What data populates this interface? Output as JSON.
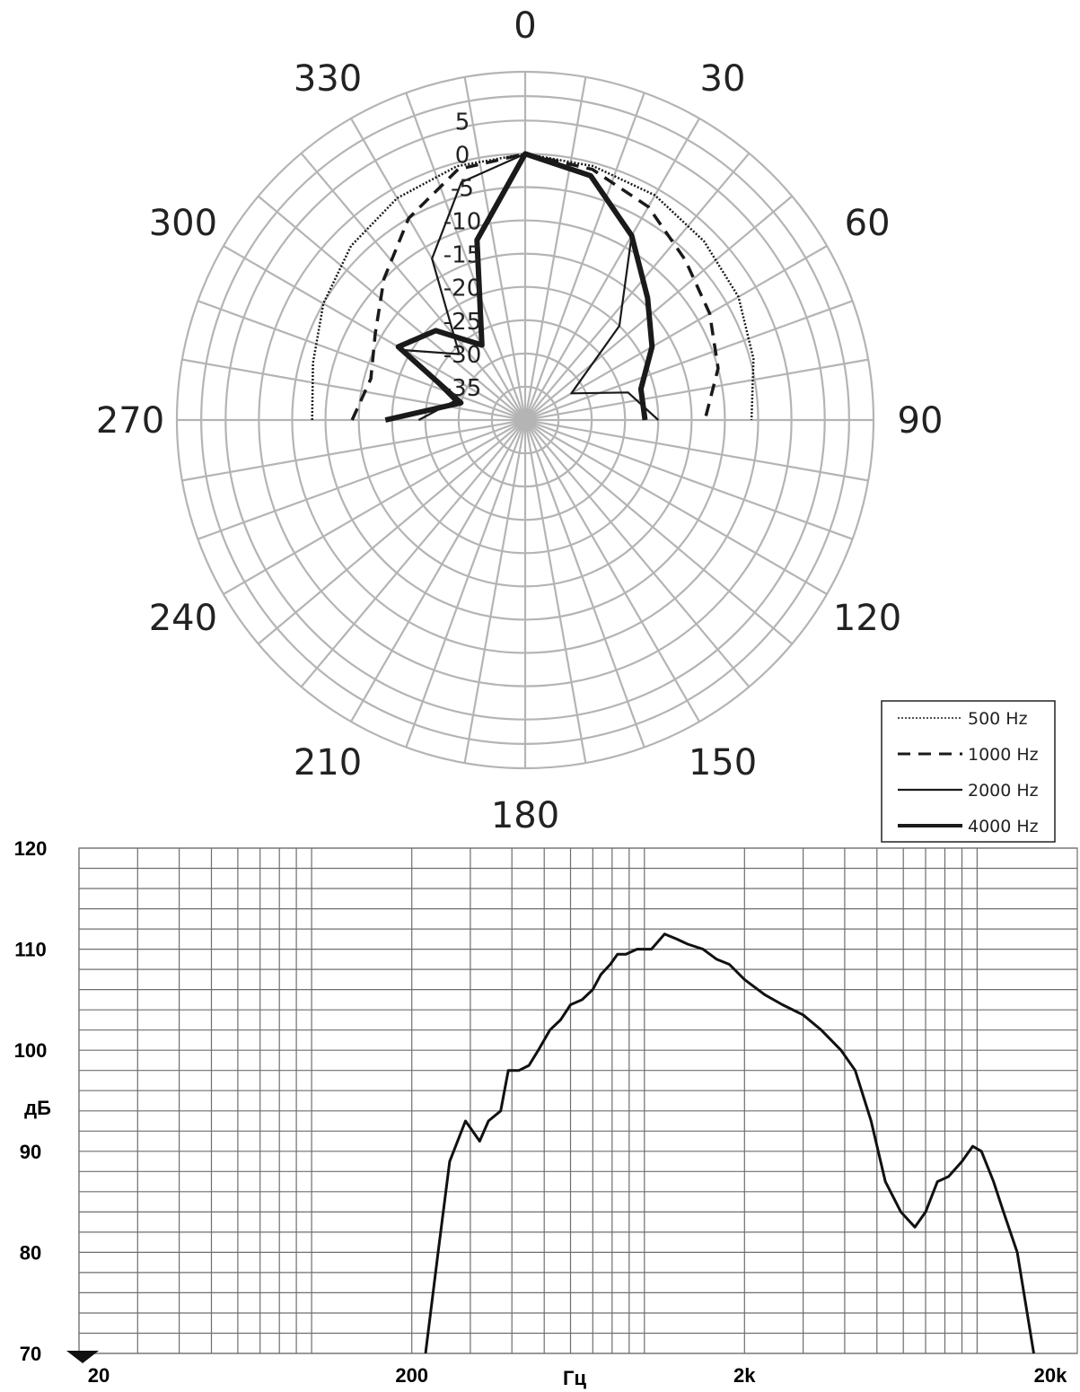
{
  "chart_data": [
    {
      "type": "polar",
      "angle_ticks": [
        "0",
        "30",
        "60",
        "90",
        "120",
        "150",
        "180",
        "210",
        "240",
        "270",
        "300",
        "330"
      ],
      "radial_ticks": [
        "5",
        "0",
        "-5",
        "-10",
        "-15",
        "-20",
        "-25",
        "-30",
        "-35"
      ],
      "rlim": [
        -40,
        5
      ],
      "legend_position": "bottom-right",
      "series": [
        {
          "name": "500Hz",
          "style": "dotted",
          "points": [
            {
              "angle": 0,
              "db": 0
            },
            {
              "angle": 15,
              "db": -0.5
            },
            {
              "angle": 30,
              "db": -1
            },
            {
              "angle": 45,
              "db": -2
            },
            {
              "angle": 60,
              "db": -3
            },
            {
              "angle": 75,
              "db": -4.5
            },
            {
              "angle": 90,
              "db": -6
            },
            {
              "angle": 270,
              "db": -8
            },
            {
              "angle": 285,
              "db": -7
            },
            {
              "angle": 300,
              "db": -5
            },
            {
              "angle": 315,
              "db": -3
            },
            {
              "angle": 330,
              "db": -1.5
            },
            {
              "angle": 345,
              "db": -0.5
            },
            {
              "angle": 360,
              "db": 0
            }
          ]
        },
        {
          "name": "1000Hz",
          "style": "dashed",
          "points": [
            {
              "angle": 0,
              "db": 0
            },
            {
              "angle": 15,
              "db": -1
            },
            {
              "angle": 30,
              "db": -3
            },
            {
              "angle": 45,
              "db": -6
            },
            {
              "angle": 60,
              "db": -8
            },
            {
              "angle": 75,
              "db": -10
            },
            {
              "angle": 90,
              "db": -13
            },
            {
              "angle": 270,
              "db": -14
            },
            {
              "angle": 285,
              "db": -16
            },
            {
              "angle": 300,
              "db": -14
            },
            {
              "angle": 315,
              "db": -10
            },
            {
              "angle": 330,
              "db": -5
            },
            {
              "angle": 345,
              "db": -1
            },
            {
              "angle": 360,
              "db": 0
            }
          ]
        },
        {
          "name": "2000Hz",
          "style": "thin",
          "points": [
            {
              "angle": 0,
              "db": 0
            },
            {
              "angle": 15,
              "db": -2
            },
            {
              "angle": 30,
              "db": -8
            },
            {
              "angle": 45,
              "db": -20
            },
            {
              "angle": 60,
              "db": -32
            },
            {
              "angle": 75,
              "db": -24
            },
            {
              "angle": 90,
              "db": -20
            },
            {
              "angle": 270,
              "db": -24
            },
            {
              "angle": 285,
              "db": -29
            },
            {
              "angle": 300,
              "db": -19
            },
            {
              "angle": 315,
              "db": -26
            },
            {
              "angle": 330,
              "db": -12
            },
            {
              "angle": 345,
              "db": -3
            },
            {
              "angle": 360,
              "db": 0
            }
          ]
        },
        {
          "name": "4000Hz",
          "style": "thick",
          "points": [
            {
              "angle": 0,
              "db": 0
            },
            {
              "angle": 15,
              "db": -2
            },
            {
              "angle": 30,
              "db": -8
            },
            {
              "angle": 45,
              "db": -14
            },
            {
              "angle": 60,
              "db": -18
            },
            {
              "angle": 75,
              "db": -22
            },
            {
              "angle": 90,
              "db": -22
            },
            {
              "angle": 270,
              "db": -19
            },
            {
              "angle": 285,
              "db": -30
            },
            {
              "angle": 300,
              "db": -18
            },
            {
              "angle": 315,
              "db": -21
            },
            {
              "angle": 330,
              "db": -27
            },
            {
              "angle": 345,
              "db": -12
            },
            {
              "angle": 360,
              "db": 0
            }
          ]
        }
      ]
    },
    {
      "type": "line",
      "x_scale": "log",
      "xlim": [
        20,
        20000
      ],
      "ylim": [
        70,
        120
      ],
      "xlabel": "Гц",
      "ylabel": "дБ",
      "x_ticks": [
        "20",
        "200",
        "2k",
        "20k"
      ],
      "x_tick_values": [
        20,
        200,
        2000,
        20000
      ],
      "y_ticks": [
        "120",
        "110",
        "100",
        "90",
        "80",
        "70"
      ],
      "y_tick_values": [
        120,
        110,
        100,
        90,
        80,
        70
      ],
      "grid": true,
      "series": [
        {
          "points": [
            [
              220,
              70
            ],
            [
              240,
              80
            ],
            [
              260,
              89
            ],
            [
              290,
              93
            ],
            [
              320,
              91
            ],
            [
              340,
              93
            ],
            [
              370,
              94
            ],
            [
              390,
              98
            ],
            [
              420,
              98
            ],
            [
              450,
              98.5
            ],
            [
              480,
              100
            ],
            [
              520,
              102
            ],
            [
              560,
              103
            ],
            [
              600,
              104.5
            ],
            [
              650,
              105
            ],
            [
              700,
              106
            ],
            [
              740,
              107.5
            ],
            [
              790,
              108.5
            ],
            [
              830,
              109.5
            ],
            [
              880,
              109.5
            ],
            [
              950,
              110
            ],
            [
              1050,
              110
            ],
            [
              1150,
              111.5
            ],
            [
              1250,
              111
            ],
            [
              1350,
              110.5
            ],
            [
              1500,
              110
            ],
            [
              1650,
              109
            ],
            [
              1800,
              108.5
            ],
            [
              2000,
              107
            ],
            [
              2300,
              105.5
            ],
            [
              2600,
              104.5
            ],
            [
              3000,
              103.5
            ],
            [
              3400,
              102
            ],
            [
              3900,
              100
            ],
            [
              4300,
              98
            ],
            [
              4800,
              93
            ],
            [
              5300,
              87
            ],
            [
              5900,
              84
            ],
            [
              6500,
              82.5
            ],
            [
              7000,
              84
            ],
            [
              7600,
              87
            ],
            [
              8200,
              87.5
            ],
            [
              9000,
              89
            ],
            [
              9700,
              90.5
            ],
            [
              10300,
              90
            ],
            [
              11200,
              87
            ],
            [
              12000,
              84
            ],
            [
              13200,
              80
            ],
            [
              14800,
              70
            ]
          ]
        }
      ]
    }
  ]
}
